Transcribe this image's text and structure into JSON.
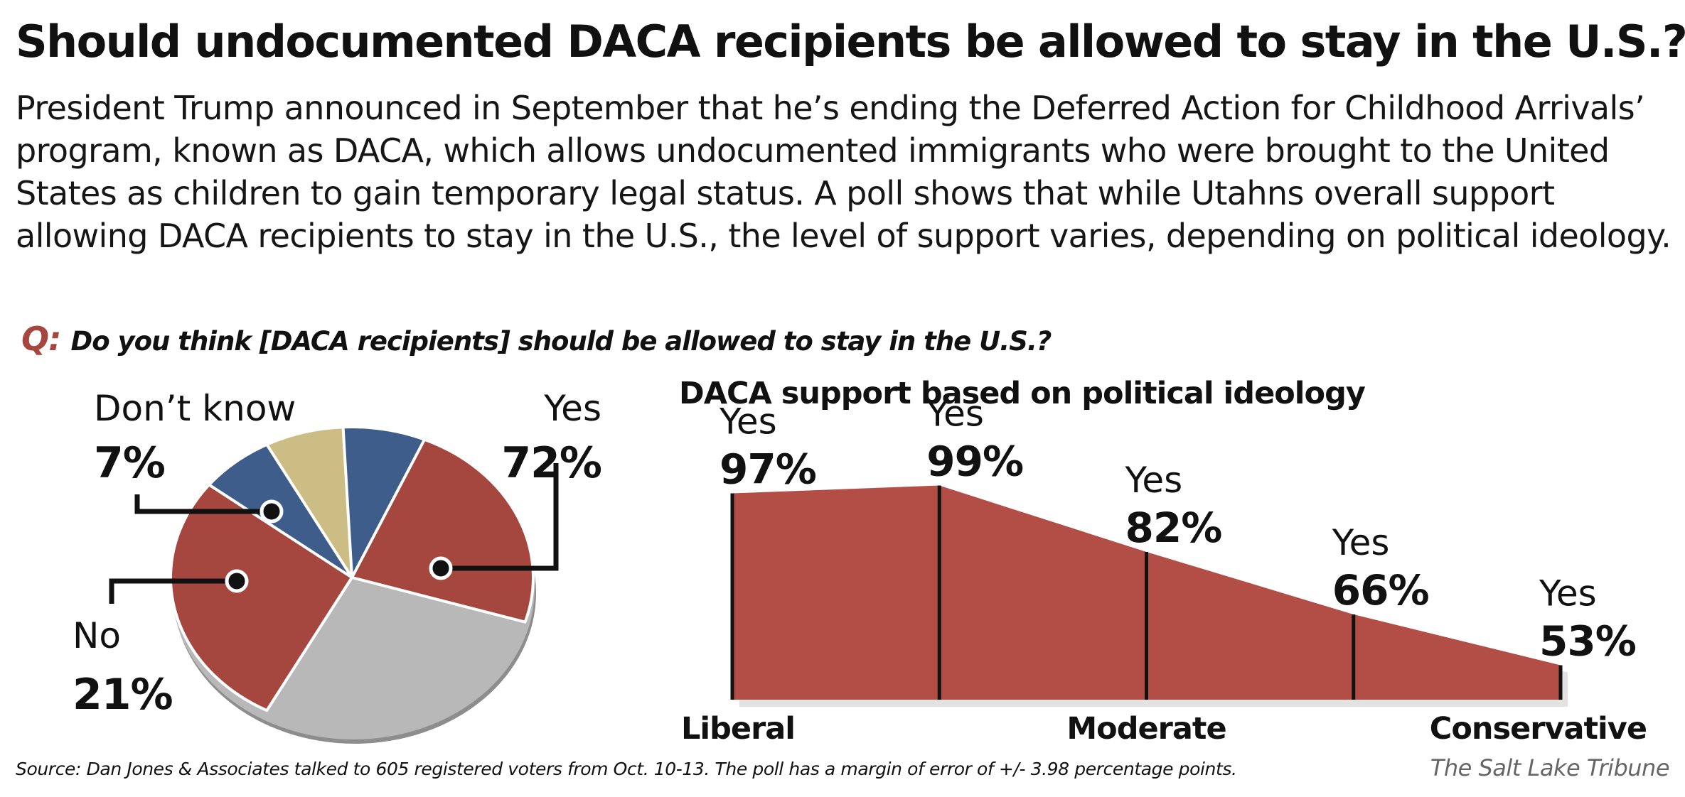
{
  "headline": "Should undocumented DACA recipients be allowed to stay in the U.S.?",
  "intro": "President Trump announced in September that he’s ending the Deferred Action for Childhood Arrivals’ program, known as DACA, which allows undocumented immigrants who were brought to the United States as children to gain temporary legal status. A poll shows that while Utahns overall support allowing DACA recipients to stay in the U.S., the level of support varies, depending on political ideology.",
  "question": {
    "prefix": "Q:",
    "text": "Do you think [DACA recipients] should be allowed to stay in the U.S.?"
  },
  "source": "Source: Dan Jones & Associates talked to  605 registered voters from Oct. 10-13. The poll has a margin of error of +/- 3.98 percentage points.",
  "credit": "The Salt Lake Tribune",
  "chart_data": [
    {
      "type": "pie",
      "slices": [
        {
          "label": "Yes",
          "value": 72,
          "value_label": "72%",
          "color": "#a5473f"
        },
        {
          "label": "No",
          "value": 21,
          "value_label": "21%",
          "color": "#3f5d8a"
        },
        {
          "label": "Don’t know",
          "value": 7,
          "value_label": "7%",
          "color": "#cbbd84"
        }
      ]
    },
    {
      "type": "area",
      "title": "DACA support based on political ideology",
      "x": [
        "Liberal",
        "",
        "Moderate",
        "",
        "Conservative"
      ],
      "series": [
        {
          "name": "Yes",
          "values": [
            97,
            99,
            82,
            66,
            53
          ],
          "value_labels": [
            "97%",
            "99%",
            "82%",
            "66%",
            "53%"
          ]
        }
      ],
      "point_label": "Yes",
      "ylim": [
        0,
        100
      ],
      "color": "#b34e47",
      "grid": false
    }
  ]
}
